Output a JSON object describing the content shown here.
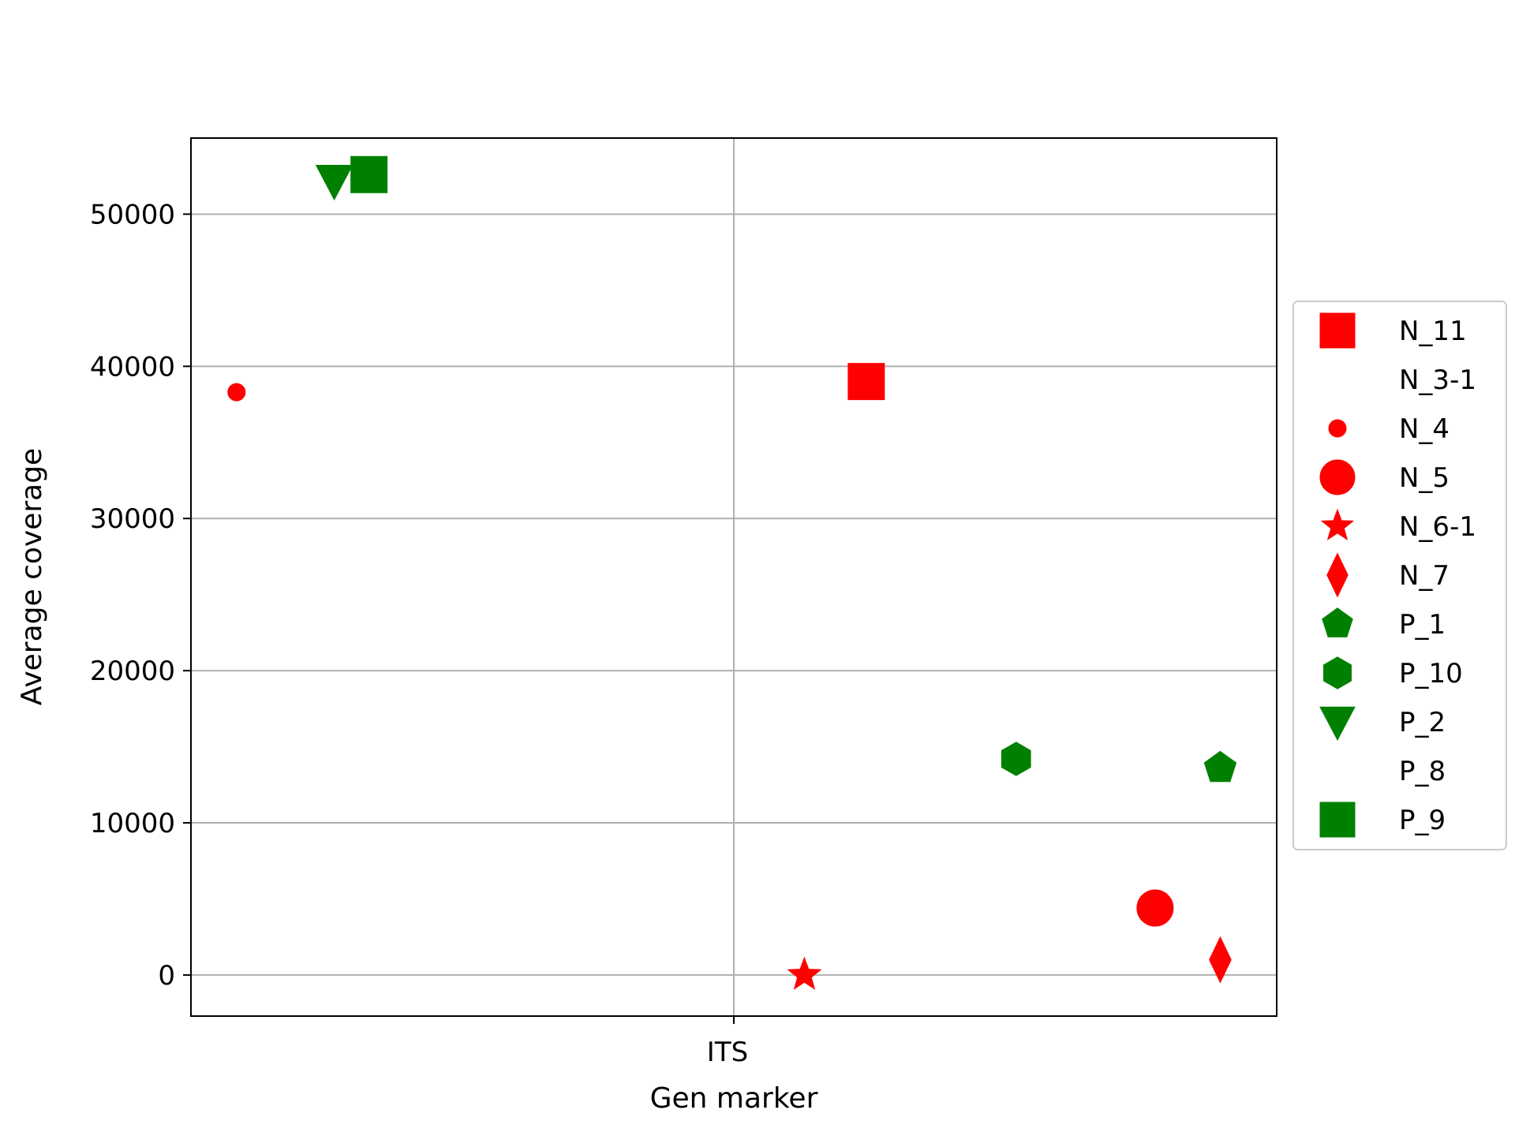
{
  "chart_data": {
    "type": "scatter",
    "title": "",
    "xlabel": "Gen marker",
    "ylabel": "Average coverage",
    "categories": [
      "ITS"
    ],
    "x_range": [
      -0.5,
      0.5
    ],
    "ylim": [
      -2700,
      55000
    ],
    "yticks": [
      0,
      10000,
      20000,
      30000,
      40000,
      50000
    ],
    "grid": true,
    "legend_position": "center-right",
    "colors": {
      "N": "#ff0000",
      "P": "#008000"
    },
    "series": [
      {
        "name": "N_11",
        "marker": "square",
        "color": "#ff0000",
        "x": 0.122,
        "y": 39000,
        "size": 46
      },
      {
        "name": "N_3-1",
        "marker": "none",
        "color": "#ff0000",
        "x": null,
        "y": null,
        "size": 0
      },
      {
        "name": "N_4",
        "marker": "circle",
        "color": "#ff0000",
        "x": -0.458,
        "y": 38300,
        "size": 22
      },
      {
        "name": "N_5",
        "marker": "circle",
        "color": "#ff0000",
        "x": 0.388,
        "y": 4400,
        "size": 46
      },
      {
        "name": "N_6-1",
        "marker": "star",
        "color": "#ff0000",
        "x": 0.065,
        "y": 0,
        "size": 46
      },
      {
        "name": "N_7",
        "marker": "thin-diamond",
        "color": "#ff0000",
        "x": 0.448,
        "y": 1000,
        "size": 46
      },
      {
        "name": "P_1",
        "marker": "pentagon",
        "color": "#008000",
        "x": 0.448,
        "y": 13600,
        "size": 46
      },
      {
        "name": "P_10",
        "marker": "hexagon",
        "color": "#008000",
        "x": 0.26,
        "y": 14200,
        "size": 46
      },
      {
        "name": "P_2",
        "marker": "triangle-down",
        "color": "#008000",
        "x": -0.368,
        "y": 52200,
        "size": 46
      },
      {
        "name": "P_8",
        "marker": "none",
        "color": "#008000",
        "x": null,
        "y": null,
        "size": 0
      },
      {
        "name": "P_9",
        "marker": "square",
        "color": "#008000",
        "x": -0.336,
        "y": 52600,
        "size": 46
      }
    ]
  }
}
